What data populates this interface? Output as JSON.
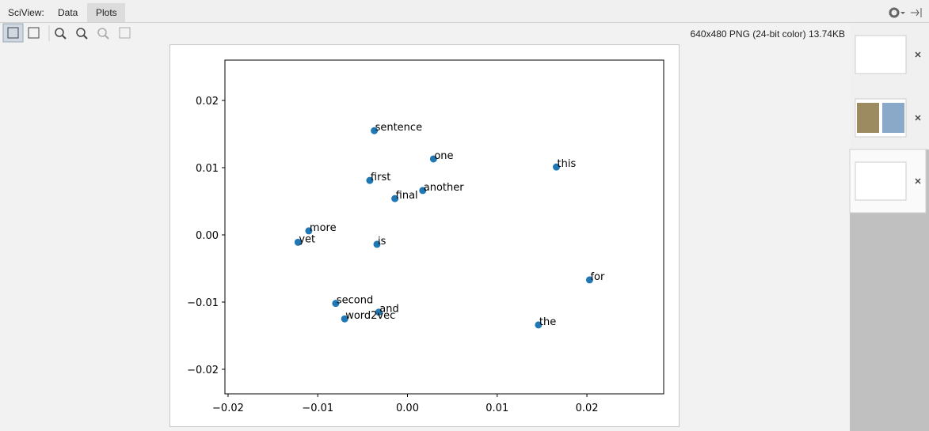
{
  "toolbar": {
    "label": "SciView:",
    "tabs": [
      "Data",
      "Plots"
    ]
  },
  "image_info": "640x480 PNG (24-bit color) 13.74KB",
  "chart_data": {
    "type": "scatter",
    "x": [
      -0.0037,
      0.0029,
      0.0166,
      -0.0042,
      0.0017,
      -0.0014,
      -0.011,
      -0.0122,
      -0.0034,
      0.0203,
      -0.008,
      -0.0032,
      -0.007,
      0.0146
    ],
    "series": [
      {
        "color": "#1f77b4",
        "values": [
          0.0155,
          0.0113,
          0.0101,
          0.0081,
          0.0066,
          0.0054,
          0.0006,
          -0.0011,
          -0.0014,
          -0.0067,
          -0.0102,
          -0.0115,
          -0.0125,
          -0.0134
        ]
      }
    ],
    "point_labels": [
      "sentence",
      "one",
      "this",
      "first",
      "another",
      "final",
      "more",
      "yet",
      "is",
      "for",
      "second",
      "and",
      "word2vec",
      "the"
    ],
    "xlim": [
      -0.02035,
      0.02856
    ],
    "ylim": [
      -0.02365,
      0.026
    ],
    "xticks": [
      {
        "value": -0.02,
        "label": "−0.02"
      },
      {
        "value": -0.01,
        "label": "−0.01"
      },
      {
        "value": 0,
        "label": "0.00"
      },
      0.01,
      0.02
    ],
    "yticks": [
      {
        "value": -0.02,
        "label": "−0.02"
      },
      {
        "value": -0.01,
        "label": "−0.01"
      },
      {
        "value": 0,
        "label": "0.00"
      },
      0.01,
      0.02
    ]
  }
}
